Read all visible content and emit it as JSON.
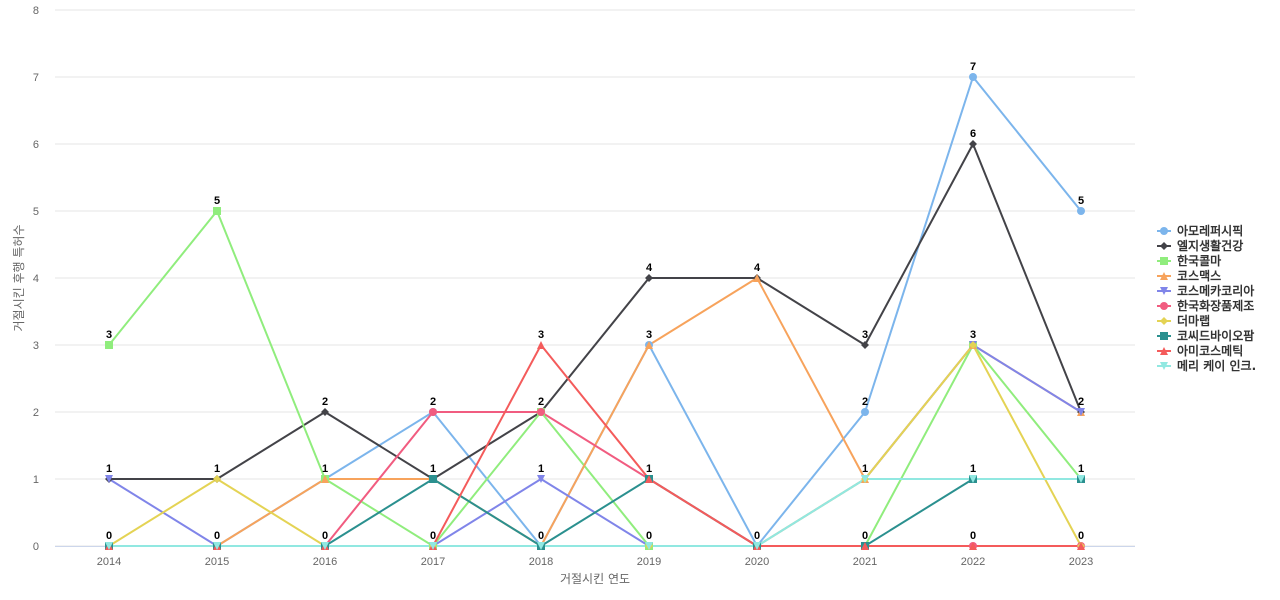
{
  "chart_data": {
    "type": "line",
    "x": [
      "2014",
      "2015",
      "2016",
      "2017",
      "2018",
      "2019",
      "2020",
      "2021",
      "2022",
      "2023"
    ],
    "xlabel": "거절시킨 연도",
    "ylabel": "거절시킨 후행 특허수",
    "ylim": [
      0,
      8
    ],
    "yticks": [
      0,
      1,
      2,
      3,
      4,
      5,
      6,
      7,
      8
    ],
    "grid": true,
    "legend_position": "right",
    "series": [
      {
        "name": "아모레퍼시픽",
        "color": "#7cb5ec",
        "marker": "circle",
        "values": [
          0,
          0,
          1,
          2,
          0,
          3,
          0,
          2,
          7,
          5
        ]
      },
      {
        "name": "엘지생활건강",
        "color": "#434348",
        "marker": "diamond",
        "values": [
          1,
          1,
          2,
          1,
          2,
          4,
          4,
          3,
          6,
          2
        ]
      },
      {
        "name": "한국콜마",
        "color": "#90ed7d",
        "marker": "square",
        "values": [
          3,
          5,
          1,
          0,
          2,
          0,
          0,
          0,
          3,
          1
        ]
      },
      {
        "name": "코스맥스",
        "color": "#f7a35c",
        "marker": "triangle",
        "values": [
          0,
          0,
          1,
          1,
          0,
          3,
          4,
          1,
          3,
          2
        ]
      },
      {
        "name": "코스메카코리아",
        "color": "#8085e9",
        "marker": "triangle-down",
        "values": [
          1,
          0,
          0,
          0,
          1,
          0,
          0,
          1,
          3,
          2
        ]
      },
      {
        "name": "한국화장품제조",
        "color": "#f15c80",
        "marker": "circle",
        "values": [
          0,
          0,
          0,
          2,
          2,
          1,
          0,
          0,
          0,
          0
        ]
      },
      {
        "name": "더마랩",
        "color": "#e4d354",
        "marker": "diamond",
        "values": [
          0,
          1,
          0,
          0,
          0,
          0,
          0,
          1,
          3,
          0
        ]
      },
      {
        "name": "코씨드바이오팜",
        "color": "#2b908f",
        "marker": "square",
        "values": [
          0,
          0,
          0,
          1,
          0,
          1,
          0,
          0,
          1,
          1
        ]
      },
      {
        "name": "아미코스메틱",
        "color": "#f45b5b",
        "marker": "triangle",
        "values": [
          0,
          0,
          0,
          0,
          3,
          1,
          0,
          0,
          0,
          0
        ]
      },
      {
        "name": "메리 케이 인크.",
        "color": "#91e8e1",
        "marker": "triangle-down",
        "values": [
          0,
          0,
          0,
          0,
          0,
          0,
          0,
          1,
          1,
          1
        ]
      }
    ],
    "data_labels": [
      {
        "x": "2014",
        "value": 3
      },
      {
        "x": "2014",
        "value": 1
      },
      {
        "x": "2014",
        "value": 0
      },
      {
        "x": "2015",
        "value": 5
      },
      {
        "x": "2015",
        "value": 1
      },
      {
        "x": "2015",
        "value": 0
      },
      {
        "x": "2016",
        "value": 2
      },
      {
        "x": "2016",
        "value": 1
      },
      {
        "x": "2016",
        "value": 0
      },
      {
        "x": "2017",
        "value": 2
      },
      {
        "x": "2017",
        "value": 1
      },
      {
        "x": "2017",
        "value": 0
      },
      {
        "x": "2018",
        "value": 3
      },
      {
        "x": "2018",
        "value": 2
      },
      {
        "x": "2018",
        "value": 1
      },
      {
        "x": "2018",
        "value": 0
      },
      {
        "x": "2019",
        "value": 4
      },
      {
        "x": "2019",
        "value": 3
      },
      {
        "x": "2019",
        "value": 1
      },
      {
        "x": "2019",
        "value": 0
      },
      {
        "x": "2020",
        "value": 4
      },
      {
        "x": "2020",
        "value": 0
      },
      {
        "x": "2021",
        "value": 3
      },
      {
        "x": "2021",
        "value": 2
      },
      {
        "x": "2021",
        "value": 1
      },
      {
        "x": "2021",
        "value": 0
      },
      {
        "x": "2022",
        "value": 7
      },
      {
        "x": "2022",
        "value": 6
      },
      {
        "x": "2022",
        "value": 3
      },
      {
        "x": "2022",
        "value": 1
      },
      {
        "x": "2022",
        "value": 0
      },
      {
        "x": "2023",
        "value": 5
      },
      {
        "x": "2023",
        "value": 2
      },
      {
        "x": "2023",
        "value": 1
      },
      {
        "x": "2023",
        "value": 0
      }
    ]
  }
}
